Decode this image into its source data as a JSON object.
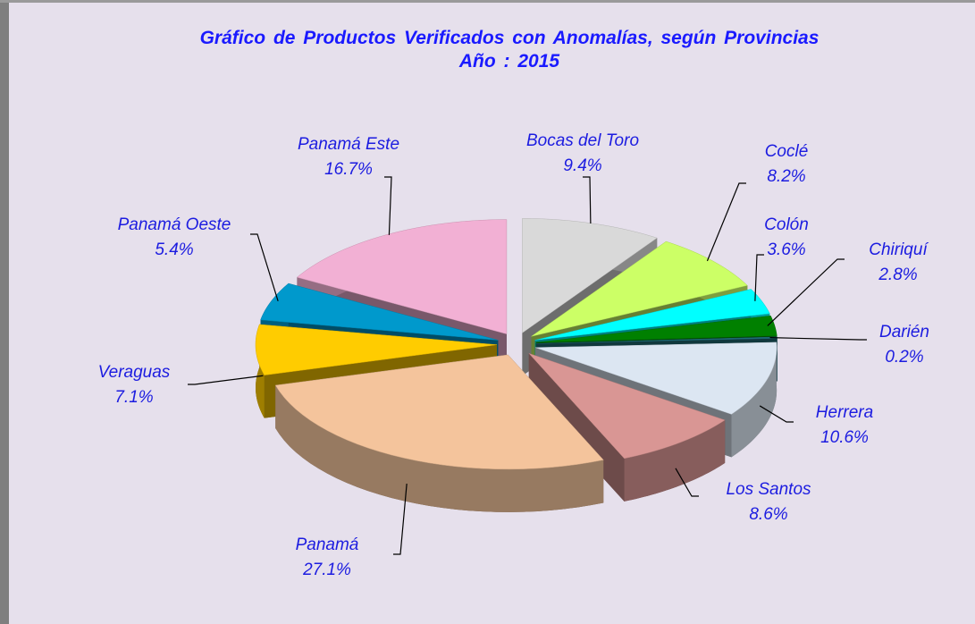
{
  "chart_data": {
    "type": "pie",
    "title": "Gráfico de Productos Verificados con Anomalías, según Provincias",
    "subtitle": "Año : 2015",
    "categories": [
      "Bocas del Toro",
      "Coclé",
      "Colón",
      "Chiriquí",
      "Darién",
      "Herrera",
      "Los Santos",
      "Panamá",
      "Veraguas",
      "Panamá Oeste",
      "Panamá Este"
    ],
    "values": [
      9.4,
      8.2,
      3.6,
      2.8,
      0.2,
      10.6,
      8.6,
      27.1,
      7.1,
      5.4,
      16.7
    ],
    "value_labels": [
      "9.4%",
      "8.2%",
      "3.6%",
      "2.8%",
      "0.2%",
      "10.6%",
      "8.6%",
      "27.1%",
      "7.1%",
      "5.4%",
      "16.7%"
    ],
    "colors": [
      "#d9d9d9",
      "#ccff66",
      "#00ffff",
      "#008000",
      "#1f6f7a",
      "#dce6f2",
      "#d99694",
      "#f4c49c",
      "#ffcc00",
      "#0099cc",
      "#f2b0d4"
    ]
  }
}
